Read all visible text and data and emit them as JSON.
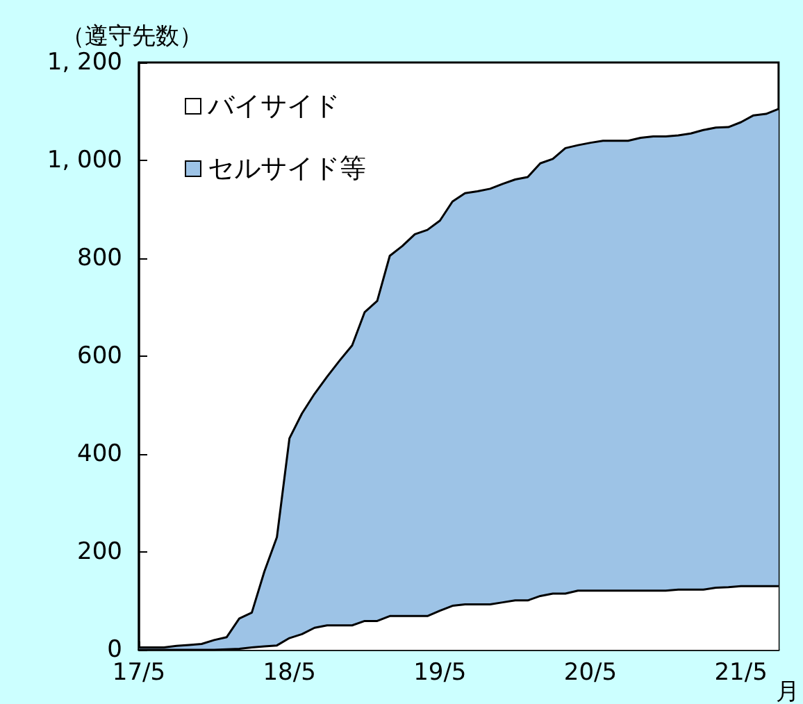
{
  "chart_data": {
    "type": "area",
    "stacked": true,
    "ylabel": "（遵守先数）",
    "xlabel": "月",
    "categories": [
      "17/5",
      null,
      null,
      null,
      null,
      null,
      null,
      null,
      null,
      null,
      null,
      null,
      "18/5",
      null,
      null,
      null,
      null,
      null,
      null,
      null,
      null,
      null,
      null,
      null,
      "19/5",
      null,
      null,
      null,
      null,
      null,
      null,
      null,
      null,
      null,
      null,
      null,
      "20/5",
      null,
      null,
      null,
      null,
      null,
      null,
      null,
      null,
      null,
      null,
      null,
      "21/5",
      null,
      null,
      null
    ],
    "series": [
      {
        "name": "バイサイド",
        "color": "#ffffff",
        "values": [
          0,
          0,
          0,
          0,
          0,
          0,
          0,
          1,
          2,
          5,
          7,
          9,
          24,
          32,
          45,
          50,
          50,
          50,
          59,
          59,
          69,
          69,
          69,
          69,
          80,
          90,
          93,
          93,
          93,
          97,
          101,
          101,
          110,
          115,
          115,
          121,
          121,
          121,
          121,
          121,
          121,
          121,
          121,
          123,
          123,
          123,
          127,
          128,
          130,
          130,
          130,
          130
        ]
      },
      {
        "name": "セルサイド等",
        "color": "#9dc3e6",
        "values": [
          5,
          5,
          5,
          8,
          10,
          12,
          20,
          25,
          62,
          71,
          153,
          221,
          408,
          451,
          478,
          508,
          541,
          572,
          631,
          654,
          736,
          756,
          780,
          789,
          797,
          826,
          840,
          844,
          849,
          855,
          860,
          865,
          884,
          888,
          910,
          910,
          915,
          919,
          919,
          919,
          925,
          928,
          928,
          928,
          932,
          939,
          940,
          940,
          948,
          962,
          965,
          975
        ]
      }
    ],
    "ylim": [
      0,
      1200
    ],
    "yticks": [
      0,
      200,
      400,
      600,
      800,
      {
        "value": 1000,
        "label": "1, 000"
      },
      {
        "value": 1200,
        "label": "1, 200"
      }
    ],
    "legend": "top left",
    "grid": false
  }
}
